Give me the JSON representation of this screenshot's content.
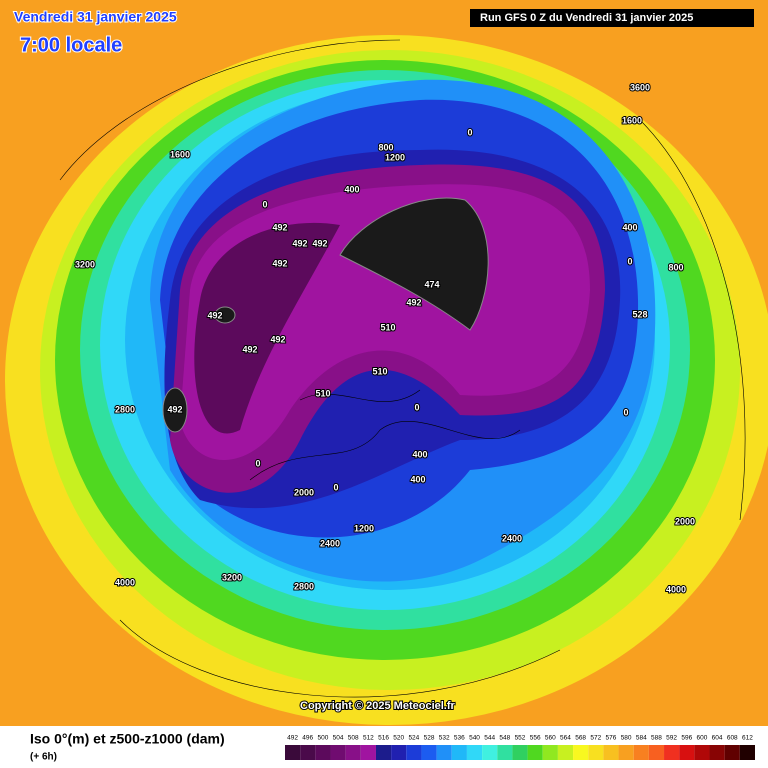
{
  "header": {
    "title": "Vendredi 31 janvier 2025",
    "time": "7:00 locale",
    "run": "Run GFS 0 Z du Vendredi 31 janvier 2025"
  },
  "map": {
    "copyright": "Copyright © 2025 Meteociel.fr",
    "contour_labels": [
      "492",
      "492",
      "492",
      "492",
      "492",
      "492",
      "492",
      "492",
      "474",
      "492",
      "510",
      "510",
      "510",
      "0",
      "0",
      "0",
      "0",
      "0",
      "0",
      "0",
      "400",
      "400",
      "400",
      "400",
      "800",
      "800",
      "1200",
      "1200",
      "1600",
      "1600",
      "2000",
      "2000",
      "2400",
      "2400",
      "2800",
      "2800",
      "3200",
      "3200",
      "3600",
      "4000",
      "4000",
      "528"
    ]
  },
  "legend": {
    "title": "Iso 0°(m) et z500-z1000 (dam)",
    "subtitle": "(+ 6h)",
    "levels": [
      492,
      496,
      500,
      504,
      508,
      512,
      516,
      520,
      524,
      528,
      532,
      536,
      540,
      544,
      548,
      552,
      556,
      560,
      564,
      568,
      572,
      576,
      580,
      584,
      588,
      592,
      596,
      600,
      604,
      608,
      612
    ],
    "colors": [
      "#3a0a3a",
      "#4a0a4a",
      "#5c0a5c",
      "#700c70",
      "#881088",
      "#a014a0",
      "#1c1c8c",
      "#2020b0",
      "#1c3cd8",
      "#1c5cf0",
      "#2090f8",
      "#20b8f8",
      "#30d8f8",
      "#40f0e0",
      "#30e0a0",
      "#30d060",
      "#50d820",
      "#90e820",
      "#c8f020",
      "#f8f820",
      "#f8e020",
      "#f8c020",
      "#f8a020",
      "#f88020",
      "#f86020",
      "#f03020",
      "#d81010",
      "#b00808",
      "#880404",
      "#600000",
      "#200000"
    ]
  }
}
